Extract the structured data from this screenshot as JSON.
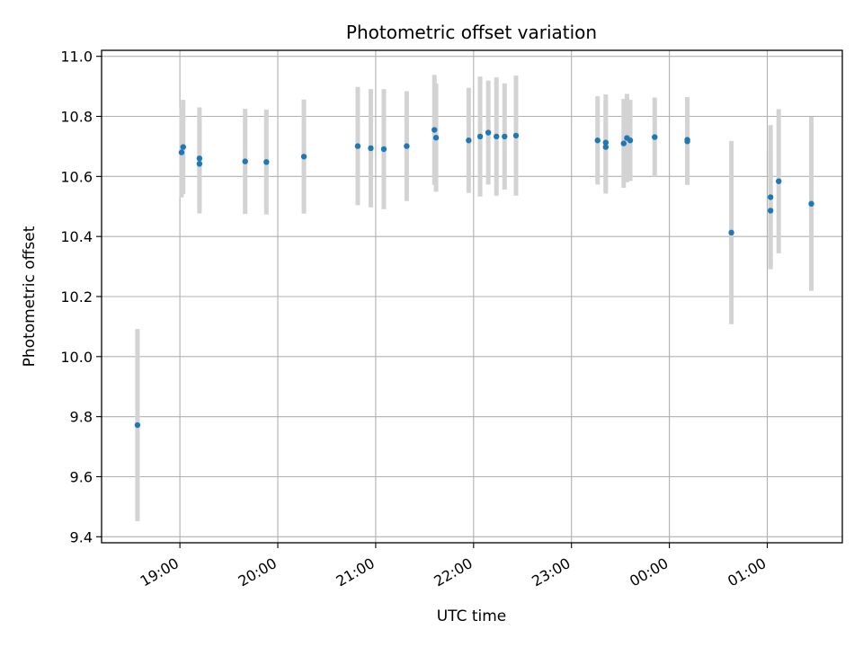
{
  "chart_data": {
    "type": "scatter",
    "title": "Photometric offset variation",
    "xlabel": "UTC time",
    "ylabel": "Photometric offset",
    "ylim": [
      9.38,
      11.02
    ],
    "xlim": [
      "18:12",
      "01:46"
    ],
    "grid": true,
    "yticks": [
      9.4,
      9.6,
      9.8,
      10.0,
      10.2,
      10.4,
      10.6,
      10.8,
      11.0
    ],
    "yticklabels": [
      "9.4",
      "9.6",
      "9.8",
      "10.0",
      "10.2",
      "10.4",
      "10.6",
      "10.8",
      "11.0"
    ],
    "xticks": [
      "19:00",
      "20:00",
      "21:00",
      "22:00",
      "23:00",
      "00:00",
      "01:00"
    ],
    "xticklabels": [
      "19:00",
      "20:00",
      "21:00",
      "22:00",
      "23:00",
      "00:00",
      "01:00"
    ],
    "colors": {
      "points": "#1f77b4",
      "errorbars": "#d3d3d3",
      "grid": "#b0b0b0"
    },
    "points": [
      {
        "x": "18:34",
        "y": 9.772,
        "yerr": 0.32
      },
      {
        "x": "19:01",
        "y": 10.68,
        "yerr": 0.15
      },
      {
        "x": "19:02",
        "y": 10.698,
        "yerr": 0.157
      },
      {
        "x": "19:12",
        "y": 10.66,
        "yerr": 0.17
      },
      {
        "x": "19:12",
        "y": 10.642,
        "yerr": 0.165
      },
      {
        "x": "19:40",
        "y": 10.65,
        "yerr": 0.175
      },
      {
        "x": "19:53",
        "y": 10.648,
        "yerr": 0.175
      },
      {
        "x": "20:16",
        "y": 10.666,
        "yerr": 0.19
      },
      {
        "x": "20:49",
        "y": 10.701,
        "yerr": 0.197
      },
      {
        "x": "20:57",
        "y": 10.694,
        "yerr": 0.197
      },
      {
        "x": "21:05",
        "y": 10.691,
        "yerr": 0.2
      },
      {
        "x": "21:19",
        "y": 10.701,
        "yerr": 0.183
      },
      {
        "x": "21:36",
        "y": 10.755,
        "yerr": 0.183
      },
      {
        "x": "21:37",
        "y": 10.729,
        "yerr": 0.18
      },
      {
        "x": "21:57",
        "y": 10.72,
        "yerr": 0.175
      },
      {
        "x": "22:04",
        "y": 10.733,
        "yerr": 0.2
      },
      {
        "x": "22:09",
        "y": 10.746,
        "yerr": 0.173
      },
      {
        "x": "22:14",
        "y": 10.733,
        "yerr": 0.197
      },
      {
        "x": "22:19",
        "y": 10.733,
        "yerr": 0.177
      },
      {
        "x": "22:26",
        "y": 10.736,
        "yerr": 0.2
      },
      {
        "x": "23:16",
        "y": 10.72,
        "yerr": 0.147
      },
      {
        "x": "23:21",
        "y": 10.713,
        "yerr": 0.16
      },
      {
        "x": "23:21",
        "y": 10.698,
        "yerr": 0.155
      },
      {
        "x": "23:32",
        "y": 10.71,
        "yerr": 0.148
      },
      {
        "x": "23:34",
        "y": 10.728,
        "yerr": 0.147
      },
      {
        "x": "23:36",
        "y": 10.72,
        "yerr": 0.135
      },
      {
        "x": "23:51",
        "y": 10.731,
        "yerr": 0.132
      },
      {
        "x": "00:11",
        "y": 10.722,
        "yerr": 0.142
      },
      {
        "x": "00:11",
        "y": 10.717,
        "yerr": 0.145
      },
      {
        "x": "00:38",
        "y": 10.413,
        "yerr": 0.305
      },
      {
        "x": "01:02",
        "y": 10.531,
        "yerr": 0.24
      },
      {
        "x": "01:02",
        "y": 10.486,
        "yerr": 0.19
      },
      {
        "x": "01:07",
        "y": 10.584,
        "yerr": 0.24
      },
      {
        "x": "01:27",
        "y": 10.509,
        "yerr": 0.29
      }
    ]
  }
}
